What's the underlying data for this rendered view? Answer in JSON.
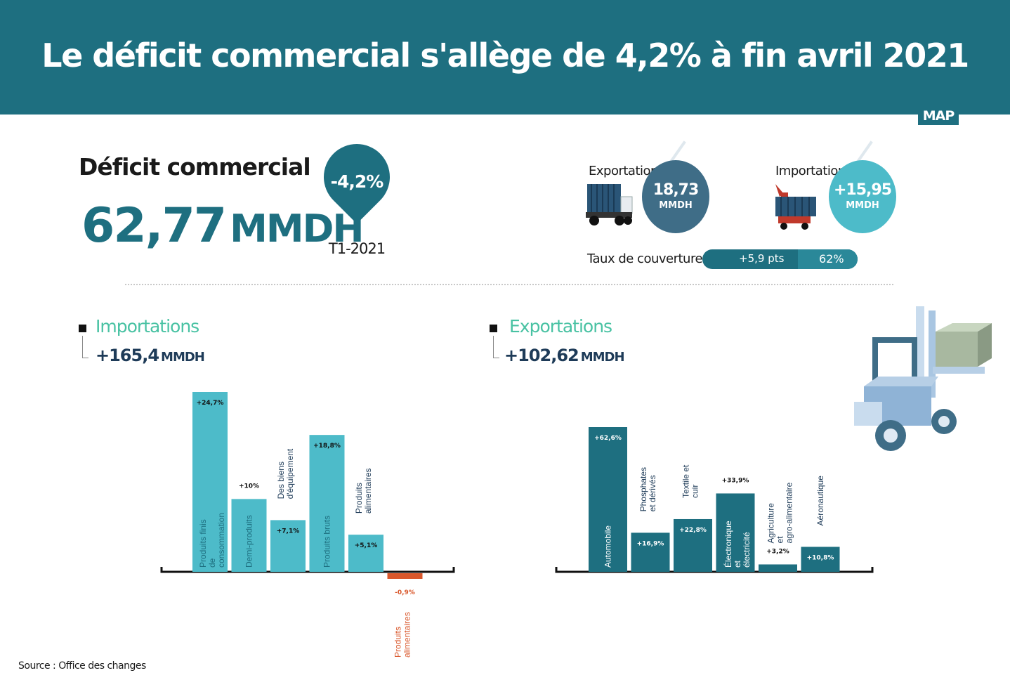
{
  "header": {
    "title": "Le déficit commercial s'allège de 4,2% à fin avril 2021",
    "logo": "MAP"
  },
  "deficit": {
    "label": "Déficit commercial",
    "value": "62,77",
    "unit": "MMDH",
    "change": "-4,2%",
    "period": "T1-2021"
  },
  "trade": {
    "exports": {
      "label": "Exportations",
      "value": "18,73",
      "unit": "MMDH"
    },
    "imports": {
      "label": "Importations",
      "value": "+15,95",
      "unit": "MMDH"
    }
  },
  "coverage": {
    "label": "Taux de couverture:",
    "points": "+5,9 pts",
    "rate": "62%"
  },
  "imports_section": {
    "title": "Importations",
    "total": "+165,4",
    "unit": "MMDH"
  },
  "exports_section": {
    "title": "Exportations",
    "total": "+102,62",
    "unit": "MMDH"
  },
  "source": "Source : Office des changes",
  "colors": {
    "teal": "#1e6f80",
    "light_teal": "#4dbbc9",
    "green": "#49c2a3",
    "negative": "#d9572b"
  },
  "icons": [
    "truck-export-icon",
    "truck-import-icon",
    "forklift-icon",
    "location-pin-icon"
  ],
  "chart_data": [
    {
      "type": "bar",
      "series_name": "",
      "categories": [
        "Produits finis de consommation",
        "Demi-produits",
        "Des biens d'équipement",
        "Produits bruts",
        "Produits alimentaires",
        "Produits alimentaires"
      ],
      "values": [
        24.7,
        10,
        7.1,
        18.8,
        5.1,
        -0.9
      ],
      "labels": [
        "+24,7%",
        "+10%",
        "+7,1%",
        "+18,8%",
        "+5,1%",
        "-0,9%"
      ]
    },
    {
      "type": "bar",
      "series_name": "",
      "categories": [
        "Automobile",
        "Phosphates et dérivés",
        "Textile et cuir",
        "Électronique et électricité",
        "Agriculture et agro-alimentaire",
        "Aéronautique"
      ],
      "values": [
        62.6,
        16.9,
        22.8,
        33.9,
        3.2,
        10.8
      ],
      "labels": [
        "+62,6%",
        "+16,9%",
        "+22,8%",
        "+33,9%",
        "+3,2%",
        "+10,8%"
      ]
    }
  ]
}
